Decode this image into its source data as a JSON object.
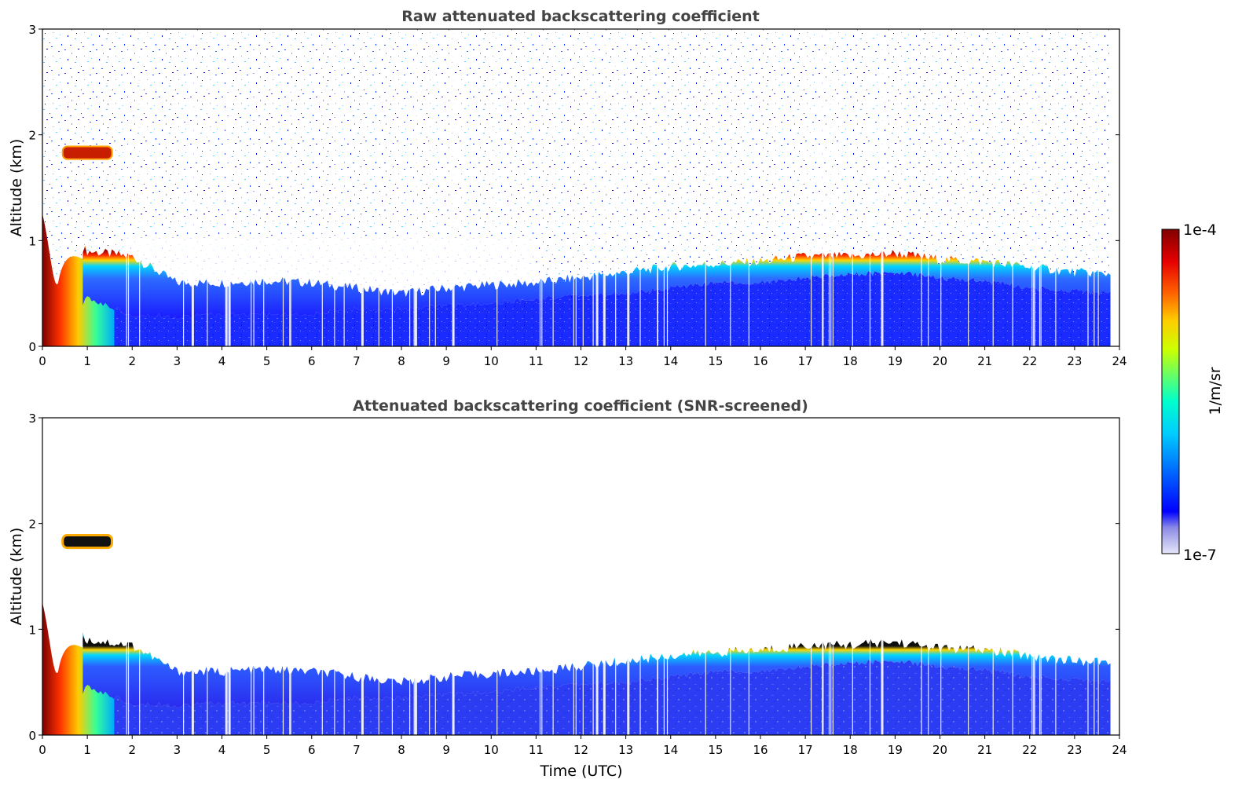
{
  "chart_data": [
    {
      "type": "heatmap",
      "title": "Raw attenuated backscattering coefficient",
      "xlabel": "",
      "ylabel": "Altitude (km)",
      "xlim": [
        0,
        24
      ],
      "ylim": [
        0,
        3
      ],
      "xticks": [
        "0",
        "1",
        "2",
        "3",
        "4",
        "5",
        "6",
        "7",
        "8",
        "9",
        "10",
        "11",
        "12",
        "13",
        "14",
        "15",
        "16",
        "17",
        "18",
        "19",
        "20",
        "21",
        "22",
        "23",
        "24"
      ],
      "yticks": [
        "0",
        "1",
        "2",
        "3"
      ],
      "layer_top_km": [
        1.2,
        0.9,
        0.85,
        0.6,
        0.6,
        0.62,
        0.6,
        0.55,
        0.5,
        0.55,
        0.58,
        0.6,
        0.65,
        0.7,
        0.75,
        0.78,
        0.8,
        0.85,
        0.85,
        0.88,
        0.82,
        0.8,
        0.75,
        0.7,
        0.68
      ],
      "layer_base_km": [
        0.0,
        0.45,
        0.3,
        0.28,
        0.3,
        0.3,
        0.3,
        0.35,
        0.35,
        0.38,
        0.4,
        0.45,
        0.48,
        0.5,
        0.55,
        0.6,
        0.6,
        0.65,
        0.68,
        0.7,
        0.65,
        0.62,
        0.55,
        0.52,
        0.5
      ],
      "cloud_patch": {
        "time_range": [
          0.45,
          1.55
        ],
        "altitude_km": 1.83
      }
    },
    {
      "type": "heatmap",
      "title": "Attenuated backscattering coefficient (SNR-screened)",
      "xlabel": "Time (UTC)",
      "ylabel": "Altitude (km)",
      "xlim": [
        0,
        24
      ],
      "ylim": [
        0,
        3
      ],
      "xticks": [
        "0",
        "1",
        "2",
        "3",
        "4",
        "5",
        "6",
        "7",
        "8",
        "9",
        "10",
        "11",
        "12",
        "13",
        "14",
        "15",
        "16",
        "17",
        "18",
        "19",
        "20",
        "21",
        "22",
        "23",
        "24"
      ],
      "yticks": [
        "0",
        "1",
        "2",
        "3"
      ],
      "cloud_patch": {
        "time_range": [
          0.45,
          1.55
        ],
        "altitude_km": 1.83
      }
    }
  ],
  "colorbar": {
    "label": "1/m/sr",
    "max_label": "1e-4",
    "min_label": "1e-7",
    "colors": [
      "#e6e6fa",
      "#b9b9ee",
      "#8a8ae6",
      "#0000ff",
      "#0066ff",
      "#00ccff",
      "#00ffcc",
      "#66ff66",
      "#ccff00",
      "#ffcc00",
      "#ff6600",
      "#e60000",
      "#7f0000"
    ]
  }
}
